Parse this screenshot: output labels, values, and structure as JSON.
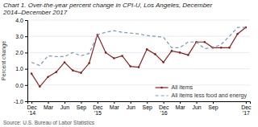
{
  "chart_data": {
    "type": "line",
    "title": "Chart 1. Over-the-year percent change in CPI-U, Los Angeles, December 2014–December 2017",
    "y_label": "Percent change",
    "annotations": [
      "Source: U.S. Bureau of Labor Statistics"
    ],
    "categories": [
      "Dec\n'14",
      null,
      "Mar",
      null,
      "Jun",
      null,
      "Sep",
      null,
      "Dec\n'15",
      null,
      "Mar",
      null,
      "Jun",
      null,
      "Sep",
      null,
      "Dec\n'16",
      null,
      "Mar",
      null,
      "Jun",
      null,
      "Sep",
      null,
      null,
      null,
      "Dec\n'17"
    ],
    "series": [
      {
        "name": "All items",
        "color": "#8B2020",
        "line_style": "solid",
        "marker": "circle",
        "values": [
          0.7,
          -0.1,
          0.5,
          0.8,
          1.4,
          0.9,
          0.75,
          1.35,
          3.1,
          2.0,
          1.65,
          1.8,
          1.15,
          1.1,
          2.2,
          1.9,
          1.4,
          2.1,
          2.0,
          1.85,
          2.65,
          2.65,
          2.3,
          2.3,
          2.3,
          3.15,
          3.55
        ]
      },
      {
        "name": "All items less food and energy",
        "color": "#7799BB",
        "line_style": "dashed",
        "marker": "none",
        "values": [
          1.4,
          1.2,
          1.8,
          1.75,
          1.75,
          2.0,
          1.8,
          1.95,
          3.1,
          3.25,
          3.35,
          3.25,
          3.2,
          3.15,
          3.05,
          3.0,
          2.95,
          2.3,
          2.3,
          2.65,
          2.65,
          2.25,
          2.3,
          2.5,
          3.0,
          3.55,
          3.55
        ]
      }
    ],
    "ylim": [
      -1.0,
      4.0
    ],
    "yticks": [
      {
        "value": -1.0,
        "label": "-1.0"
      },
      {
        "value": 0.0,
        "label": "0.0"
      },
      {
        "value": 1.0,
        "label": "1.0"
      },
      {
        "value": 2.0,
        "label": "2.0"
      },
      {
        "value": 3.0,
        "label": "3.0"
      },
      {
        "value": 4.0,
        "label": "4.0"
      }
    ],
    "grid": true,
    "legend": "lower right"
  }
}
